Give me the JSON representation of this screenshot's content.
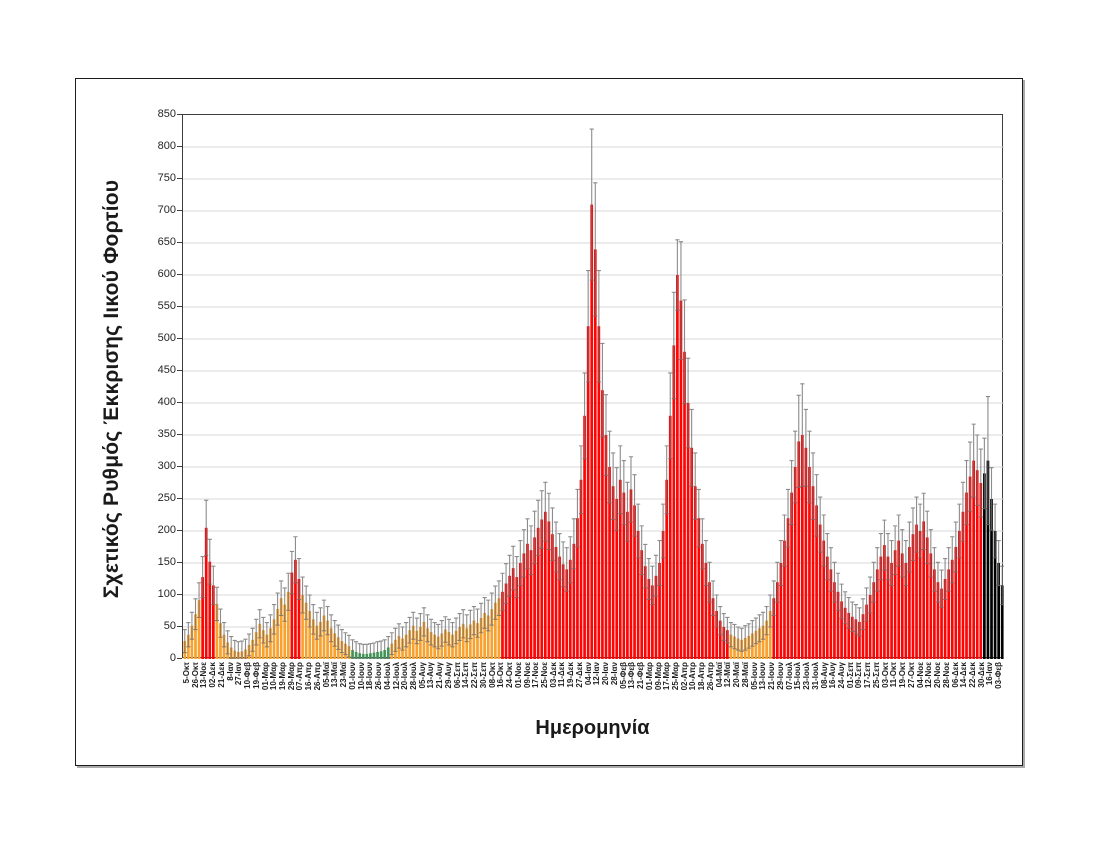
{
  "figure": {
    "kind": "excel-style column chart with error bars",
    "background": "#FFFFFF",
    "border_color": "#1C1C1C"
  },
  "chart_data": {
    "type": "bar",
    "title": "",
    "ylabel": "Σχετικός Ρυθμός Έκκρισης Ιικού Φορτίου",
    "xlabel": "Ημερομηνία",
    "ylim": [
      0,
      850
    ],
    "ytick_step": 50,
    "y_tick_labels": [
      0,
      50,
      100,
      150,
      200,
      250,
      300,
      350,
      400,
      450,
      500,
      550,
      600,
      650,
      700,
      750,
      800,
      850
    ],
    "grid": true,
    "legend_position": "none",
    "x_tick_labels": [
      "5-Οκτ",
      "26-Οκτ",
      "13-Νοε",
      "02-Δεκ",
      "21-Δεκ",
      "8-Ιαν",
      "27-Ιαν",
      "10-Φεβ",
      "19-Φεβ",
      "01-Μαρ",
      "10-Μαρ",
      "19-Μαρ",
      "29-Μαρ",
      "07-Απρ",
      "16-Απρ",
      "26-Απρ",
      "05-Μαϊ",
      "13-Μαϊ",
      "23-Μαϊ",
      "01-Ιουν",
      "10-Ιουν",
      "18-Ιουν",
      "26-Ιουν",
      "04-Ιουλ",
      "12-Ιουλ",
      "20-Ιουλ",
      "28-Ιουλ",
      "05-Αυγ",
      "13-Αυγ",
      "21-Αυγ",
      "29-Αυγ",
      "06-Σεπ",
      "14-Σεπ",
      "22-Σεπ",
      "30-Σεπ",
      "08-Οκτ",
      "16-Οκτ",
      "24-Οκτ",
      "01-Νοε",
      "09-Νοε",
      "17-Νοε",
      "25-Νοε",
      "03-Δεκ",
      "11-Δεκ",
      "19-Δεκ",
      "27-Δεκ",
      "04-Ιαν",
      "12-Ιαν",
      "20-Ιαν",
      "28-Ιαν",
      "05-Φεβ",
      "13-Φεβ",
      "21-Φεβ",
      "01-Μαρ",
      "09-Μαρ",
      "17-Μαρ",
      "25-Μαρ",
      "02-Απρ",
      "10-Απρ",
      "18-Απρ",
      "26-Απρ",
      "04-Μαϊ",
      "12-Μαϊ",
      "20-Μαϊ",
      "28-Μαϊ",
      "05-Ιουν",
      "13-Ιουν",
      "21-Ιουν",
      "29-Ιουν",
      "07-Ιουλ",
      "15-Ιουλ",
      "23-Ιουλ",
      "31-Ιουλ",
      "08-Αυγ",
      "16-Αυγ",
      "24-Αυγ",
      "01-Σεπ",
      "09-Σεπ",
      "17-Σεπ",
      "25-Σεπ",
      "03-Οκτ",
      "11-Οκτ",
      "19-Οκτ",
      "27-Οκτ",
      "04-Νοε",
      "12-Νοε",
      "20-Νοε",
      "28-Νοε",
      "06-Δεκ",
      "14-Δεκ",
      "22-Δεκ",
      "30-Δεκ",
      "16-Ιαν",
      "03-Φεβ"
    ],
    "bars": {
      "count": 230,
      "values": [
        28,
        38,
        52,
        70,
        92,
        128,
        205,
        152,
        115,
        86,
        56,
        38,
        26,
        18,
        13,
        11,
        12,
        15,
        22,
        30,
        42,
        55,
        45,
        38,
        48,
        62,
        78,
        95,
        85,
        105,
        135,
        155,
        125,
        100,
        88,
        75,
        62,
        52,
        58,
        68,
        60,
        48,
        40,
        34,
        28,
        24,
        20,
        14,
        11,
        9,
        8,
        8,
        9,
        10,
        11,
        12,
        14,
        18,
        24,
        30,
        36,
        32,
        38,
        45,
        52,
        44,
        50,
        58,
        48,
        42,
        38,
        35,
        40,
        46,
        42,
        38,
        44,
        50,
        55,
        48,
        54,
        60,
        56,
        64,
        72,
        68,
        78,
        88,
        95,
        105,
        118,
        130,
        142,
        128,
        150,
        165,
        180,
        170,
        190,
        205,
        218,
        230,
        215,
        195,
        175,
        160,
        148,
        140,
        155,
        180,
        220,
        280,
        380,
        520,
        710,
        640,
        520,
        420,
        350,
        300,
        270,
        250,
        280,
        260,
        230,
        265,
        240,
        200,
        170,
        145,
        125,
        115,
        130,
        150,
        200,
        280,
        380,
        490,
        600,
        560,
        480,
        400,
        330,
        270,
        220,
        180,
        150,
        120,
        95,
        75,
        60,
        50,
        45,
        38,
        35,
        32,
        30,
        33,
        36,
        40,
        44,
        48,
        52,
        60,
        75,
        95,
        120,
        150,
        185,
        220,
        260,
        300,
        340,
        350,
        330,
        300,
        270,
        240,
        210,
        185,
        160,
        140,
        120,
        105,
        90,
        80,
        72,
        66,
        62,
        58,
        70,
        85,
        100,
        120,
        140,
        160,
        178,
        160,
        150,
        170,
        185,
        165,
        150,
        175,
        195,
        210,
        200,
        215,
        190,
        165,
        140,
        120,
        110,
        125,
        140,
        155,
        175,
        200,
        230,
        260,
        285,
        310,
        295,
        275,
        290,
        310,
        250,
        200,
        150,
        115
      ],
      "errors": [
        18,
        19,
        21,
        24,
        27,
        32,
        43,
        35,
        30,
        26,
        22,
        19,
        18,
        17,
        16,
        16,
        16,
        16,
        17,
        18,
        20,
        22,
        20,
        19,
        21,
        23,
        25,
        27,
        26,
        29,
        33,
        36,
        32,
        28,
        26,
        25,
        23,
        21,
        22,
        24,
        22,
        21,
        20,
        19,
        18,
        17,
        17,
        16,
        16,
        15,
        15,
        15,
        15,
        15,
        16,
        16,
        16,
        17,
        17,
        18,
        19,
        18,
        19,
        20,
        21,
        20,
        21,
        22,
        21,
        20,
        19,
        19,
        20,
        20,
        20,
        19,
        20,
        21,
        22,
        21,
        22,
        22,
        22,
        23,
        24,
        24,
        25,
        26,
        27,
        29,
        31,
        32,
        34,
        32,
        35,
        37,
        39,
        38,
        41,
        43,
        45,
        46,
        44,
        41,
        39,
        36,
        35,
        34,
        36,
        39,
        45,
        53,
        67,
        87,
        118,
        104,
        87,
        73,
        63,
        56,
        52,
        49,
        53,
        50,
        46,
        51,
        48,
        42,
        38,
        34,
        32,
        30,
        32,
        35,
        42,
        53,
        67,
        83,
        55,
        92,
        81,
        70,
        60,
        52,
        45,
        39,
        35,
        31,
        27,
        25,
        22,
        21,
        20,
        19,
        19,
        18,
        18,
        19,
        19,
        20,
        20,
        21,
        21,
        22,
        25,
        27,
        31,
        35,
        40,
        45,
        50,
        56,
        72,
        80,
        60,
        56,
        52,
        48,
        43,
        40,
        36,
        34,
        31,
        29,
        27,
        25,
        24,
        23,
        23,
        22,
        24,
        26,
        28,
        31,
        34,
        36,
        39,
        36,
        35,
        38,
        40,
        37,
        35,
        39,
        41,
        43,
        42,
        44,
        41,
        37,
        34,
        31,
        29,
        32,
        34,
        36,
        39,
        42,
        46,
        50,
        54,
        57,
        55,
        53,
        55,
        100,
        49,
        42,
        35,
        30
      ],
      "levels": "ooooorrrrooooooooooooooooooooorrroooooooooooooogggggggggggooooooooooooooooooooooooooooooorrrrrrrrrrrrrrrrrrrrrrrrrrrrrrrrrrrrrrrrrrrrrrrrrrrrrrrrrrrrrrrroooooooooooorrrrrrrrrrrrrrrrrrrrrrrrrrrrrrrrrrrrrrrrrrrrrrrrrrrrrrrrrrr",
      "level_colors": {
        "r": "#FB0505",
        "o": "#F7A12E",
        "g": "#33A850"
      },
      "error_bar_color": "#6F6F6F"
    },
    "style": {
      "grid_color": "#D9D9D9",
      "axis_color": "#3D3D3D",
      "tick_text_color": "#262626",
      "title_text_color": "#1A1A1A"
    }
  }
}
